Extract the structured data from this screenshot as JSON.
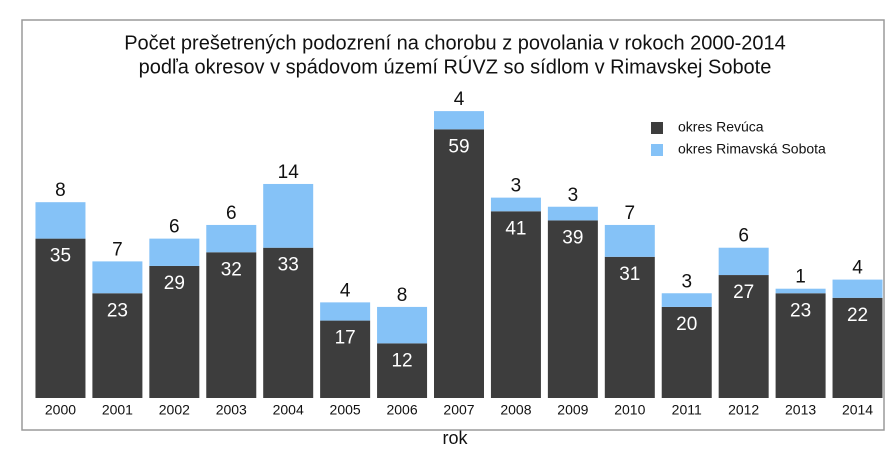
{
  "chart_data": {
    "type": "stacked_bar",
    "title": [
      "Počet prešetrených podozrení  na chorobu z povolania v rokoch 2000-2014",
      "podľa okresov v spádovom území RÚVZ so sídlom v Rimavskej Sobote"
    ],
    "x_label": "rok",
    "categories": [
      "2000",
      "2001",
      "2002",
      "2003",
      "2004",
      "2005",
      "2006",
      "2007",
      "2008",
      "2009",
      "2010",
      "2011",
      "2012",
      "2013",
      "2014"
    ],
    "series": [
      {
        "name": "okres Revúca",
        "color": "#3d3d3d",
        "values": [
          35,
          23,
          29,
          32,
          33,
          17,
          12,
          59,
          41,
          39,
          31,
          20,
          27,
          23,
          22
        ]
      },
      {
        "name": "okres Rimavská Sobota",
        "color": "#85c2f7",
        "values": [
          8,
          7,
          6,
          6,
          14,
          4,
          8,
          4,
          3,
          3,
          7,
          3,
          6,
          1,
          4
        ]
      }
    ],
    "ylim": [
      0,
      65
    ],
    "legend": "upper right"
  }
}
